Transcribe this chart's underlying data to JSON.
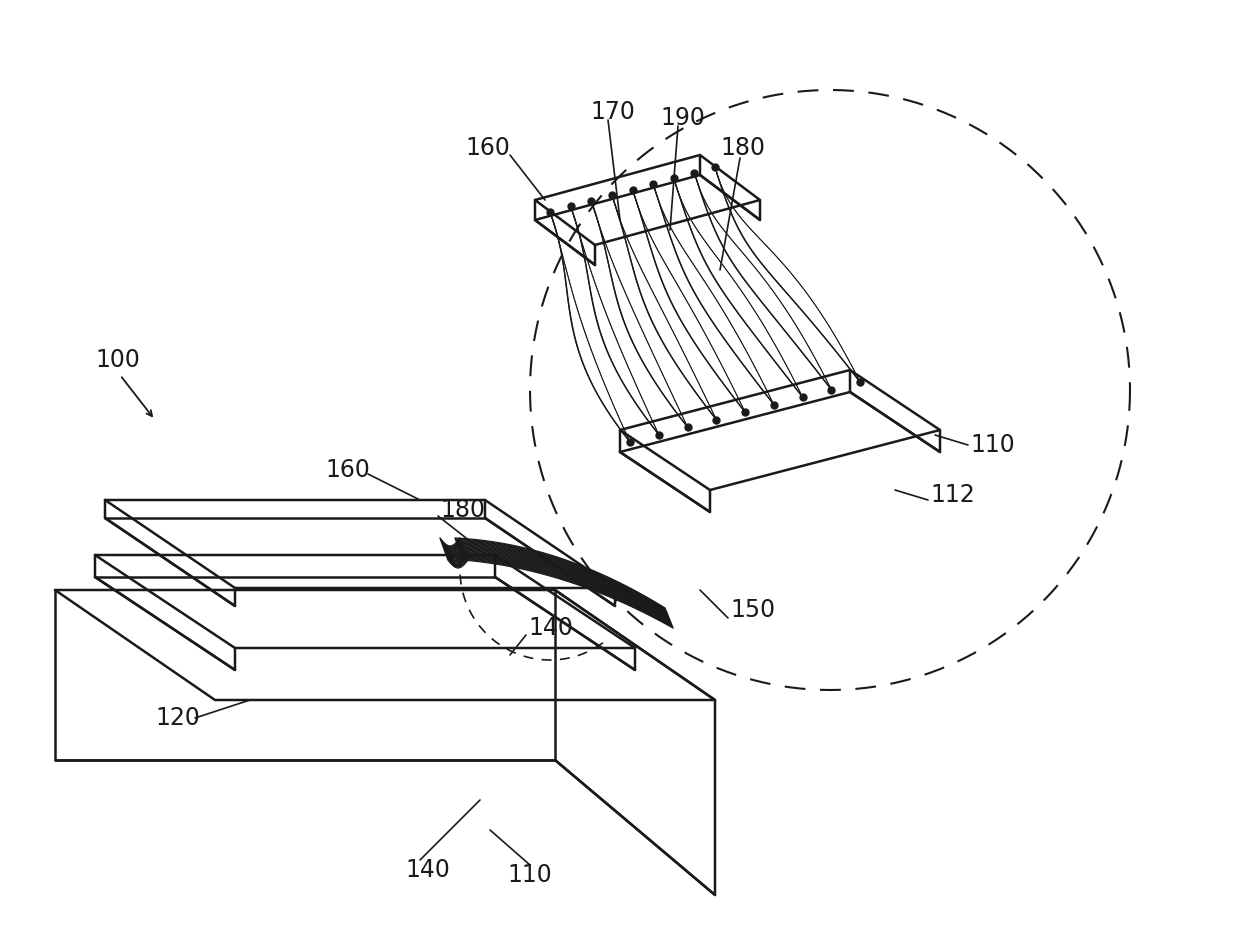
{
  "bg_color": "#ffffff",
  "line_color": "#1a1a1a",
  "label_fontsize": 17,
  "dashes_large": [
    10,
    6
  ],
  "dashes_small": [
    6,
    4
  ],
  "lw_main": 1.8,
  "lw_thin": 1.0,
  "lw_wire": 0.9
}
